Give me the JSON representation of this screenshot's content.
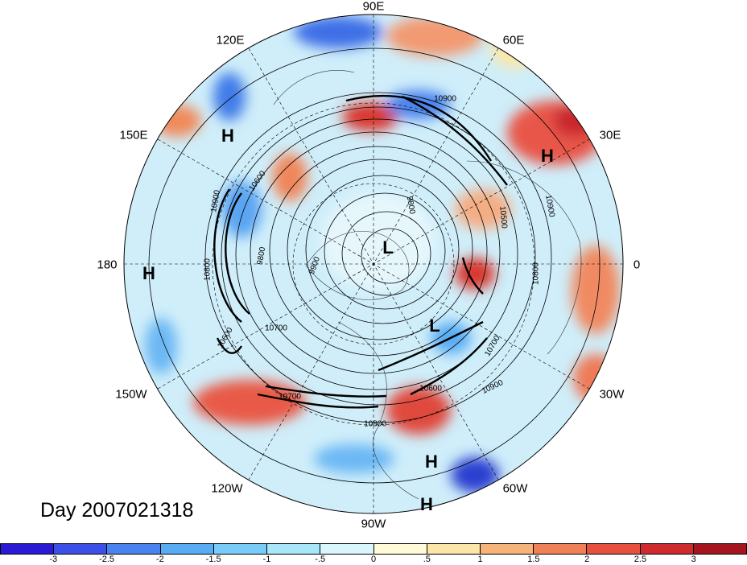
{
  "title": "Day 2007021318",
  "longitude_labels": {
    "n90e": "90E",
    "n60e": "60E",
    "n30e": "30E",
    "zero": "0",
    "n30w": "30W",
    "n60w": "60W",
    "n90w": "90W",
    "n120w": "120W",
    "n150w": "150W",
    "n180": "180",
    "n150e": "150E",
    "n120e": "120E"
  },
  "pressure_markers": {
    "h1": "H",
    "h2": "H",
    "h3": "H",
    "h4": "H",
    "h5": "H",
    "l1": "L",
    "l2": "L"
  },
  "contour_labels": {
    "c1": "10900",
    "c2": "10900",
    "c3": "10900",
    "c4": "10900",
    "c5": "10800",
    "c6": "10800",
    "c7": "10700",
    "c8": "10700",
    "c9": "10600",
    "c10": "10600",
    "c11": "9800",
    "c12": "9900",
    "c13": "9800",
    "c14": "10500",
    "c15": "10700",
    "c16": "10800",
    "c17": "10600"
  },
  "colorbar": {
    "colors": [
      "#2a1ad6",
      "#3c4fe6",
      "#4a82ee",
      "#58acf4",
      "#78ccf8",
      "#a8e6fa",
      "#d8f6fc",
      "#fffbd8",
      "#fbe6a8",
      "#f7b47a",
      "#f08058",
      "#e6503e",
      "#cf2a2e",
      "#a4151f"
    ],
    "ticks": [
      "-3",
      "-2.5",
      "-2",
      "-1.5",
      "-1",
      "-.5",
      "0",
      ".5",
      "1",
      "1.5",
      "2",
      "2.5",
      "3"
    ]
  }
}
